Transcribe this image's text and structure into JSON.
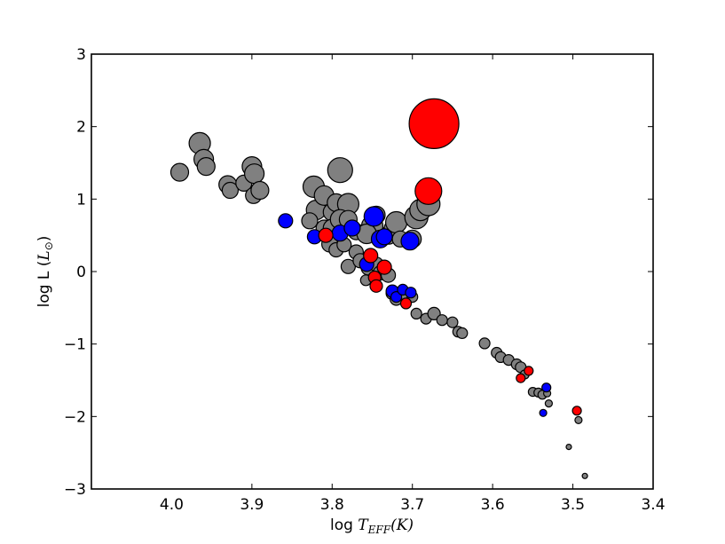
{
  "chart_data": {
    "type": "scatter",
    "xlabel": "log T_EFF(K)",
    "xlabel_prefix": "log ",
    "xlabel_symbol": "T",
    "xlabel_subscript": "EFF",
    "xlabel_suffix": "(K)",
    "ylabel": "log L (L_⊙)",
    "ylabel_prefix": "log L (",
    "ylabel_symbol": "L",
    "ylabel_subscript": "⊙",
    "ylabel_suffix": ")",
    "xlim": [
      4.1,
      3.4
    ],
    "ylim": [
      -3,
      3
    ],
    "x_axis_inverted": true,
    "xticks": [
      "4.0",
      "3.9",
      "3.8",
      "3.7",
      "3.6",
      "3.5",
      "3.4"
    ],
    "yticks": [
      "3",
      "2",
      "1",
      "0",
      "−1",
      "−2",
      "−3"
    ],
    "xtick_values": [
      4.0,
      3.9,
      3.8,
      3.7,
      3.6,
      3.5,
      3.4
    ],
    "ytick_values": [
      3,
      2,
      1,
      0,
      -1,
      -2,
      -3
    ],
    "grid": false,
    "colors": {
      "gray": "#808080",
      "blue": "#0000ff",
      "red": "#ff0000",
      "edge": "#000000",
      "background": "#ffffff"
    },
    "series": [
      {
        "color": "gray",
        "points": [
          [
            3.99,
            1.37,
            10
          ],
          [
            3.965,
            1.77,
            12
          ],
          [
            3.96,
            1.55,
            11
          ],
          [
            3.957,
            1.45,
            10
          ],
          [
            3.93,
            1.2,
            10
          ],
          [
            3.927,
            1.12,
            9
          ],
          [
            3.91,
            1.22,
            9
          ],
          [
            3.9,
            1.45,
            11
          ],
          [
            3.897,
            1.35,
            11
          ],
          [
            3.898,
            1.05,
            9
          ],
          [
            3.89,
            1.12,
            10
          ],
          [
            3.79,
            1.4,
            14
          ],
          [
            3.823,
            1.17,
            12
          ],
          [
            3.82,
            0.85,
            11
          ],
          [
            3.81,
            1.05,
            11
          ],
          [
            3.8,
            0.82,
            10
          ],
          [
            3.795,
            0.95,
            10
          ],
          [
            3.78,
            0.93,
            12
          ],
          [
            3.828,
            0.7,
            9
          ],
          [
            3.81,
            0.6,
            9
          ],
          [
            3.8,
            0.6,
            10
          ],
          [
            3.79,
            0.72,
            11
          ],
          [
            3.78,
            0.72,
            10
          ],
          [
            3.795,
            0.45,
            9
          ],
          [
            3.803,
            0.38,
            9
          ],
          [
            3.795,
            0.3,
            8
          ],
          [
            3.785,
            0.37,
            8
          ],
          [
            3.77,
            0.55,
            9
          ],
          [
            3.77,
            0.27,
            8
          ],
          [
            3.78,
            0.07,
            8
          ],
          [
            3.765,
            0.15,
            8
          ],
          [
            3.755,
            0.05,
            8
          ],
          [
            3.75,
            0.63,
            12
          ],
          [
            3.757,
            0.52,
            11
          ],
          [
            3.745,
            0.78,
            10
          ],
          [
            3.745,
            0.1,
            8
          ],
          [
            3.73,
            0.5,
            10
          ],
          [
            3.725,
            0.6,
            9
          ],
          [
            3.72,
            0.68,
            12
          ],
          [
            3.715,
            0.45,
            9
          ],
          [
            3.7,
            0.45,
            10
          ],
          [
            3.695,
            0.75,
            13
          ],
          [
            3.69,
            0.85,
            12
          ],
          [
            3.68,
            0.93,
            13
          ],
          [
            3.74,
            -0.02,
            8
          ],
          [
            3.73,
            -0.05,
            8
          ],
          [
            3.725,
            -0.3,
            7
          ],
          [
            3.72,
            -0.38,
            7
          ],
          [
            3.71,
            -0.3,
            7
          ],
          [
            3.695,
            -0.58,
            6
          ],
          [
            3.683,
            -0.65,
            6
          ],
          [
            3.673,
            -0.58,
            7
          ],
          [
            3.663,
            -0.67,
            6
          ],
          [
            3.65,
            -0.7,
            6
          ],
          [
            3.643,
            -0.83,
            6
          ],
          [
            3.638,
            -0.85,
            6
          ],
          [
            3.61,
            -0.99,
            6
          ],
          [
            3.595,
            -1.12,
            6
          ],
          [
            3.59,
            -1.18,
            6
          ],
          [
            3.58,
            -1.22,
            6
          ],
          [
            3.57,
            -1.28,
            6
          ],
          [
            3.565,
            -1.32,
            6
          ],
          [
            3.56,
            -1.42,
            5
          ],
          [
            3.55,
            -1.66,
            5
          ],
          [
            3.543,
            -1.67,
            5
          ],
          [
            3.538,
            -1.7,
            5
          ],
          [
            3.532,
            -1.68,
            4
          ],
          [
            3.53,
            -1.82,
            4
          ],
          [
            3.493,
            -2.05,
            4
          ],
          [
            3.505,
            -2.42,
            3
          ],
          [
            3.485,
            -2.82,
            3
          ],
          [
            3.758,
            -0.12,
            6
          ],
          [
            3.7,
            -0.35,
            6
          ]
        ]
      },
      {
        "color": "blue",
        "points": [
          [
            3.858,
            0.7,
            8
          ],
          [
            3.822,
            0.48,
            8
          ],
          [
            3.79,
            0.53,
            9
          ],
          [
            3.775,
            0.6,
            9
          ],
          [
            3.748,
            0.76,
            11
          ],
          [
            3.74,
            0.45,
            10
          ],
          [
            3.735,
            0.48,
            9
          ],
          [
            3.703,
            0.42,
            10
          ],
          [
            3.757,
            0.1,
            8
          ],
          [
            3.725,
            -0.27,
            7
          ],
          [
            3.72,
            -0.35,
            6
          ],
          [
            3.712,
            -0.25,
            6
          ],
          [
            3.702,
            -0.29,
            6
          ],
          [
            3.533,
            -1.6,
            5
          ],
          [
            3.537,
            -1.95,
            4
          ]
        ]
      },
      {
        "color": "red",
        "points": [
          [
            3.673,
            2.04,
            28
          ],
          [
            3.68,
            1.11,
            15
          ],
          [
            3.808,
            0.5,
            8
          ],
          [
            3.752,
            0.22,
            8
          ],
          [
            3.735,
            0.06,
            8
          ],
          [
            3.747,
            -0.08,
            7
          ],
          [
            3.745,
            -0.2,
            7
          ],
          [
            3.708,
            -0.44,
            6
          ],
          [
            3.555,
            -1.37,
            5
          ],
          [
            3.565,
            -1.47,
            5
          ],
          [
            3.495,
            -1.92,
            5
          ]
        ]
      }
    ]
  }
}
